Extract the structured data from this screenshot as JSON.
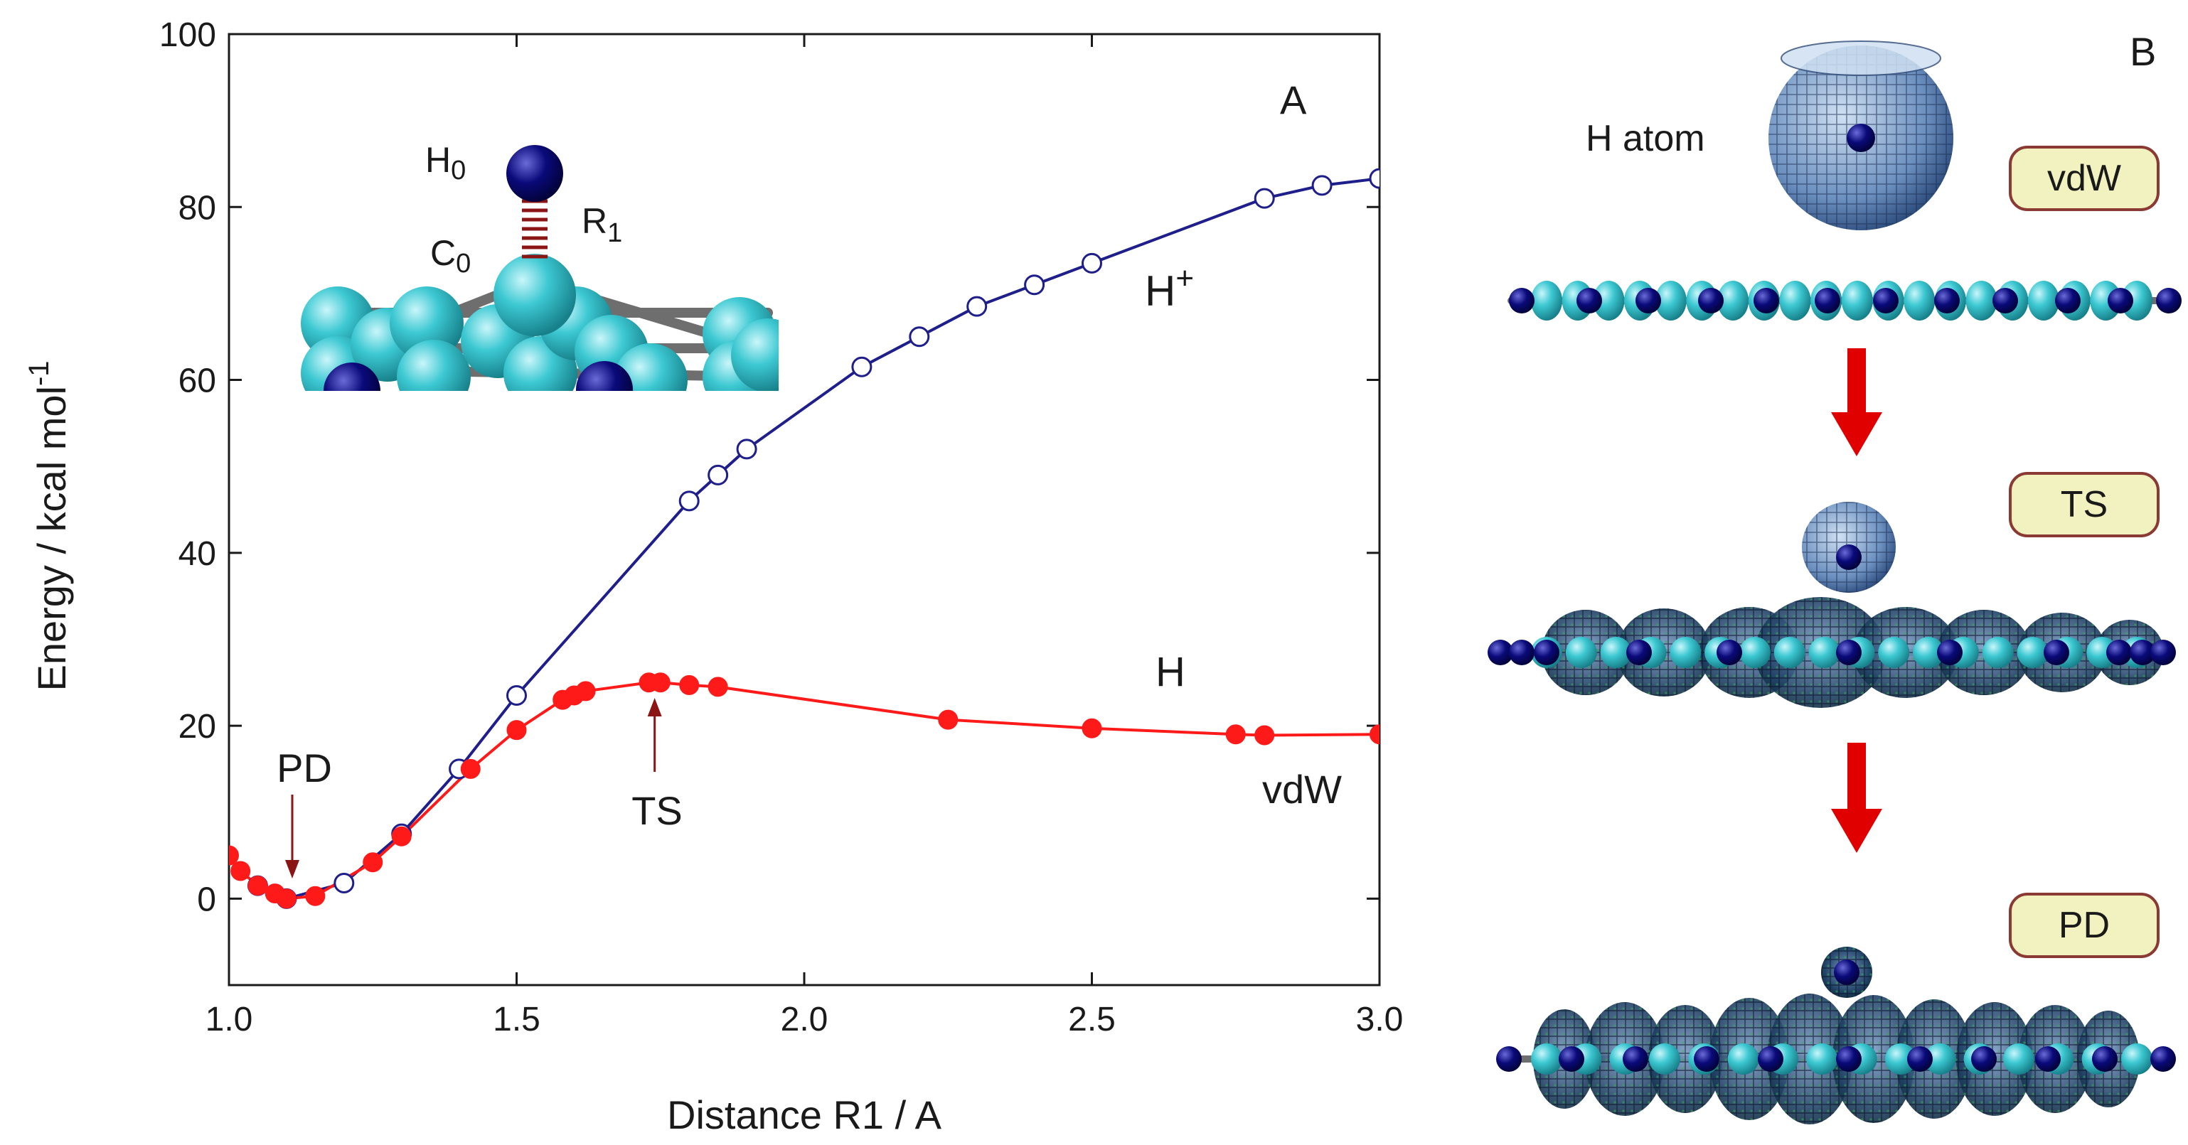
{
  "colors": {
    "h_plus_series": "#1e1e8c",
    "h_series": "#ff1a1a",
    "carbon": "#3cc8d2",
    "hydrogen": "#0a0a7a",
    "arrow": "#e00000",
    "pill_fill": "#f2f2c0",
    "pill_border": "#8a3a32"
  },
  "chart_data": {
    "type": "line",
    "panel_label": "A",
    "xlabel": "Distance R1 / A",
    "ylabel_main": "Energy / kcal mol",
    "ylabel_superscript": "-1",
    "xlim": [
      1.0,
      3.0
    ],
    "ylim": [
      -10,
      100
    ],
    "x_ticks": [
      1.0,
      1.5,
      2.0,
      2.5,
      3.0
    ],
    "x_tick_labels": [
      "1.0",
      "1.5",
      "2.0",
      "2.5",
      "3.0"
    ],
    "y_ticks": [
      0,
      20,
      40,
      60,
      80,
      100
    ],
    "y_tick_labels": [
      "0",
      "20",
      "40",
      "60",
      "80",
      "100"
    ],
    "grid": false,
    "series": [
      {
        "name": "H+",
        "marker": "open-circle",
        "color": "#1e1e8c",
        "x": [
          1.05,
          1.1,
          1.2,
          1.3,
          1.4,
          1.5,
          1.8,
          1.85,
          1.9,
          2.1,
          2.2,
          2.3,
          2.4,
          2.5,
          2.8,
          2.9,
          3.0
        ],
        "y": [
          1.5,
          0.0,
          1.8,
          7.5,
          15.0,
          23.5,
          46.0,
          49.0,
          52.0,
          61.5,
          65.0,
          68.5,
          71.0,
          73.5,
          81.0,
          82.5,
          83.3
        ]
      },
      {
        "name": "H",
        "marker": "filled-circle",
        "color": "#ff1a1a",
        "x": [
          1.0,
          1.02,
          1.05,
          1.08,
          1.1,
          1.15,
          1.25,
          1.3,
          1.42,
          1.5,
          1.58,
          1.6,
          1.62,
          1.73,
          1.75,
          1.8,
          1.85,
          2.25,
          2.5,
          2.75,
          2.8,
          3.0
        ],
        "y": [
          5.0,
          3.2,
          1.5,
          0.6,
          0.0,
          0.3,
          4.2,
          7.2,
          15.0,
          19.5,
          23.0,
          23.5,
          24.0,
          25.0,
          25.0,
          24.7,
          24.5,
          20.7,
          19.7,
          19.0,
          18.9,
          19.0
        ]
      }
    ],
    "annotations": {
      "h_plus_main": "H",
      "h_plus_sup": "+",
      "h_label": "H",
      "vdw_label": "vdW",
      "pd_label": "PD",
      "ts_label": "TS",
      "pd_x": 1.11,
      "ts_x": 1.74
    },
    "inset": {
      "h0_main": "H",
      "h0_sub": "0",
      "c0_main": "C",
      "c0_sub": "0",
      "r1_main": "R",
      "r1_sub": "1"
    }
  },
  "panel_b": {
    "label": "B",
    "h_atom_label": "H atom",
    "stages": [
      "vdW",
      "TS",
      "PD"
    ]
  }
}
